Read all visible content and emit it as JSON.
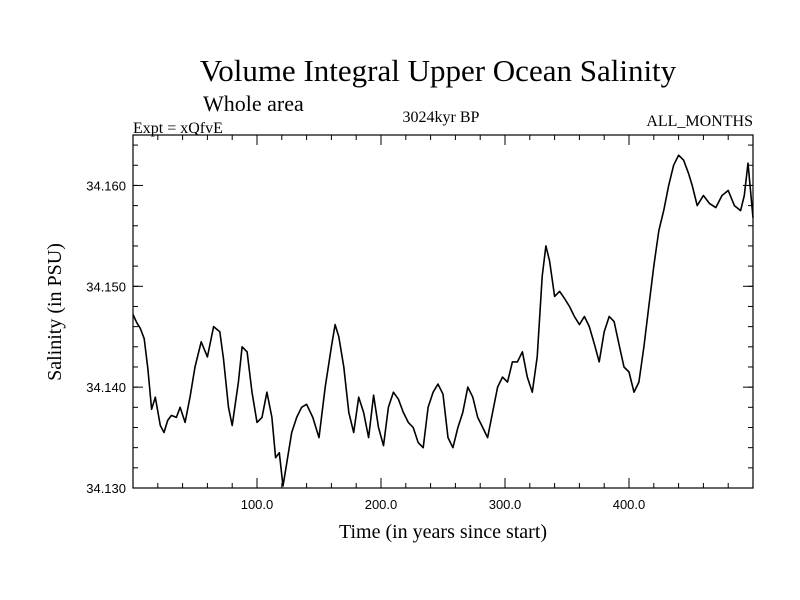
{
  "chart_data": {
    "type": "line",
    "title": "Volume Integral Upper Ocean Salinity",
    "subtitle": "Whole area",
    "experiment_label": "Expt = xQfvE",
    "period_label": "3024kyr BP",
    "months_label": "ALL_MONTHS",
    "xlabel": "Time (in years since start)",
    "ylabel": "Salinity (in PSU)",
    "xlim": [
      0,
      500
    ],
    "ylim": [
      34.13,
      34.165
    ],
    "x_ticks": [
      100,
      200,
      300,
      400
    ],
    "x_tick_labels": [
      "100.0",
      "200.0",
      "300.0",
      "400.0"
    ],
    "y_ticks": [
      34.13,
      34.14,
      34.15,
      34.16
    ],
    "y_tick_labels": [
      "34.130",
      "34.140",
      "34.150",
      "34.160"
    ],
    "grid": false,
    "series": [
      {
        "name": "Salinity",
        "x": [
          0,
          3,
          6,
          9,
          12,
          15,
          18,
          22,
          25,
          28,
          31,
          35,
          38,
          42,
          46,
          50,
          55,
          60,
          65,
          70,
          73,
          77,
          80,
          85,
          88,
          92,
          96,
          100,
          104,
          108,
          112,
          115,
          118,
          121,
          124,
          128,
          132,
          136,
          140,
          145,
          150,
          155,
          160,
          163,
          166,
          170,
          174,
          178,
          182,
          186,
          190,
          194,
          198,
          202,
          206,
          210,
          214,
          218,
          222,
          226,
          230,
          234,
          238,
          242,
          246,
          250,
          254,
          258,
          262,
          266,
          270,
          274,
          278,
          282,
          286,
          290,
          294,
          298,
          302,
          306,
          310,
          314,
          318,
          322,
          326,
          330,
          333,
          336,
          340,
          344,
          348,
          352,
          356,
          360,
          364,
          368,
          372,
          376,
          380,
          384,
          388,
          392,
          396,
          400,
          404,
          408,
          412,
          416,
          420,
          424,
          428,
          432,
          436,
          440,
          444,
          448,
          451,
          455,
          460,
          465,
          470,
          475,
          480,
          485,
          490,
          493,
          496,
          500
        ],
        "values": [
          34.1472,
          34.1464,
          34.1458,
          34.1448,
          34.1418,
          34.1378,
          34.139,
          34.1362,
          34.1355,
          34.1367,
          34.1372,
          34.137,
          34.138,
          34.1365,
          34.139,
          34.142,
          34.1445,
          34.143,
          34.146,
          34.1455,
          34.1428,
          34.138,
          34.1362,
          34.1405,
          34.144,
          34.1435,
          34.1395,
          34.1365,
          34.137,
          34.1395,
          34.137,
          34.133,
          34.1335,
          34.1302,
          34.1325,
          34.1355,
          34.137,
          34.138,
          34.1383,
          34.137,
          34.135,
          34.14,
          34.144,
          34.1462,
          34.145,
          34.142,
          34.1375,
          34.1355,
          34.139,
          34.1375,
          34.135,
          34.1392,
          34.136,
          34.1342,
          34.138,
          34.1395,
          34.1388,
          34.1375,
          34.1365,
          34.136,
          34.1345,
          34.134,
          34.138,
          34.1395,
          34.1403,
          34.1393,
          34.135,
          34.134,
          34.136,
          34.1375,
          34.14,
          34.139,
          34.137,
          34.136,
          34.135,
          34.1375,
          34.14,
          34.141,
          34.1405,
          34.1425,
          34.1425,
          34.1435,
          34.141,
          34.1395,
          34.143,
          34.151,
          34.154,
          34.1525,
          34.149,
          34.1495,
          34.1488,
          34.148,
          34.147,
          34.1462,
          34.147,
          34.146,
          34.1443,
          34.1425,
          34.1455,
          34.147,
          34.1465,
          34.1442,
          34.142,
          34.1415,
          34.1395,
          34.1405,
          34.144,
          34.148,
          34.152,
          34.1555,
          34.1575,
          34.16,
          34.162,
          34.163,
          34.1625,
          34.1612,
          34.16,
          34.158,
          34.159,
          34.1582,
          34.1578,
          34.159,
          34.1595,
          34.158,
          34.1575,
          34.159,
          34.1622,
          34.1568
        ]
      }
    ]
  }
}
